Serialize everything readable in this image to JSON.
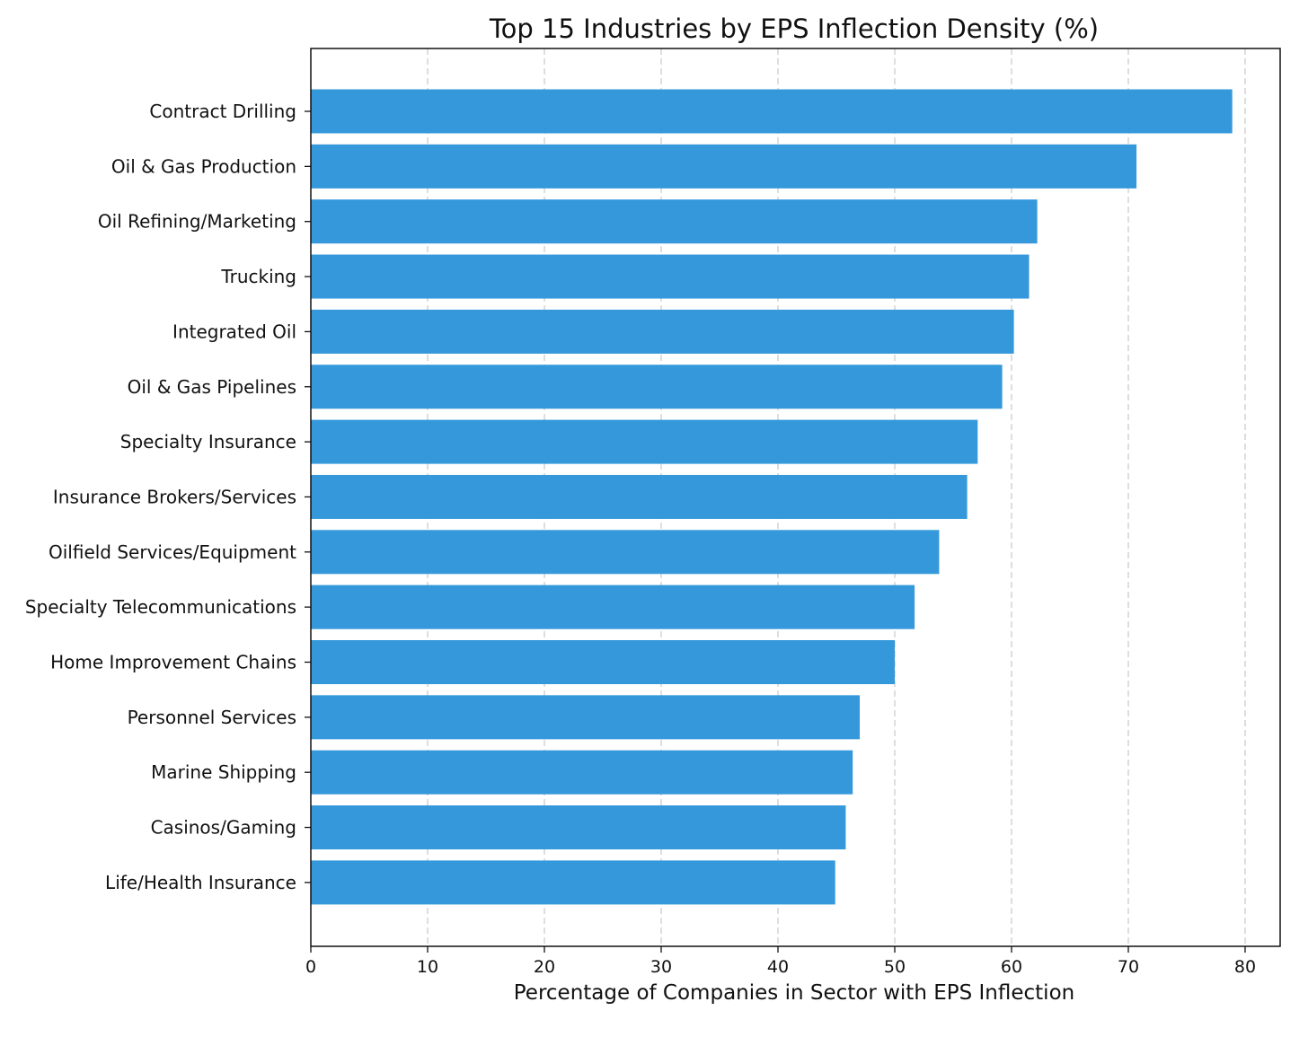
{
  "chart_data": {
    "type": "bar",
    "orientation": "horizontal",
    "title": "Top 15 Industries by EPS Inflection Density (%)",
    "xlabel": "Percentage of Companies in Sector with EPS Inflection",
    "ylabel": "",
    "xlim": [
      0,
      83
    ],
    "xticks": [
      0,
      10,
      20,
      30,
      40,
      50,
      60,
      70,
      80
    ],
    "grid": "x, dashed",
    "bar_color": "#3498db",
    "categories": [
      "Contract Drilling",
      "Oil & Gas Production",
      "Oil Refining/Marketing",
      "Trucking",
      "Integrated Oil",
      "Oil & Gas Pipelines",
      "Specialty Insurance",
      "Insurance Brokers/Services",
      "Oilfield Services/Equipment",
      "Specialty Telecommunications",
      "Home Improvement Chains",
      "Personnel Services",
      "Marine Shipping",
      "Casinos/Gaming",
      "Life/Health Insurance"
    ],
    "values": [
      78.9,
      70.7,
      62.2,
      61.5,
      60.2,
      59.2,
      57.1,
      56.2,
      53.8,
      51.7,
      50.0,
      47.0,
      46.4,
      45.8,
      44.9
    ]
  }
}
